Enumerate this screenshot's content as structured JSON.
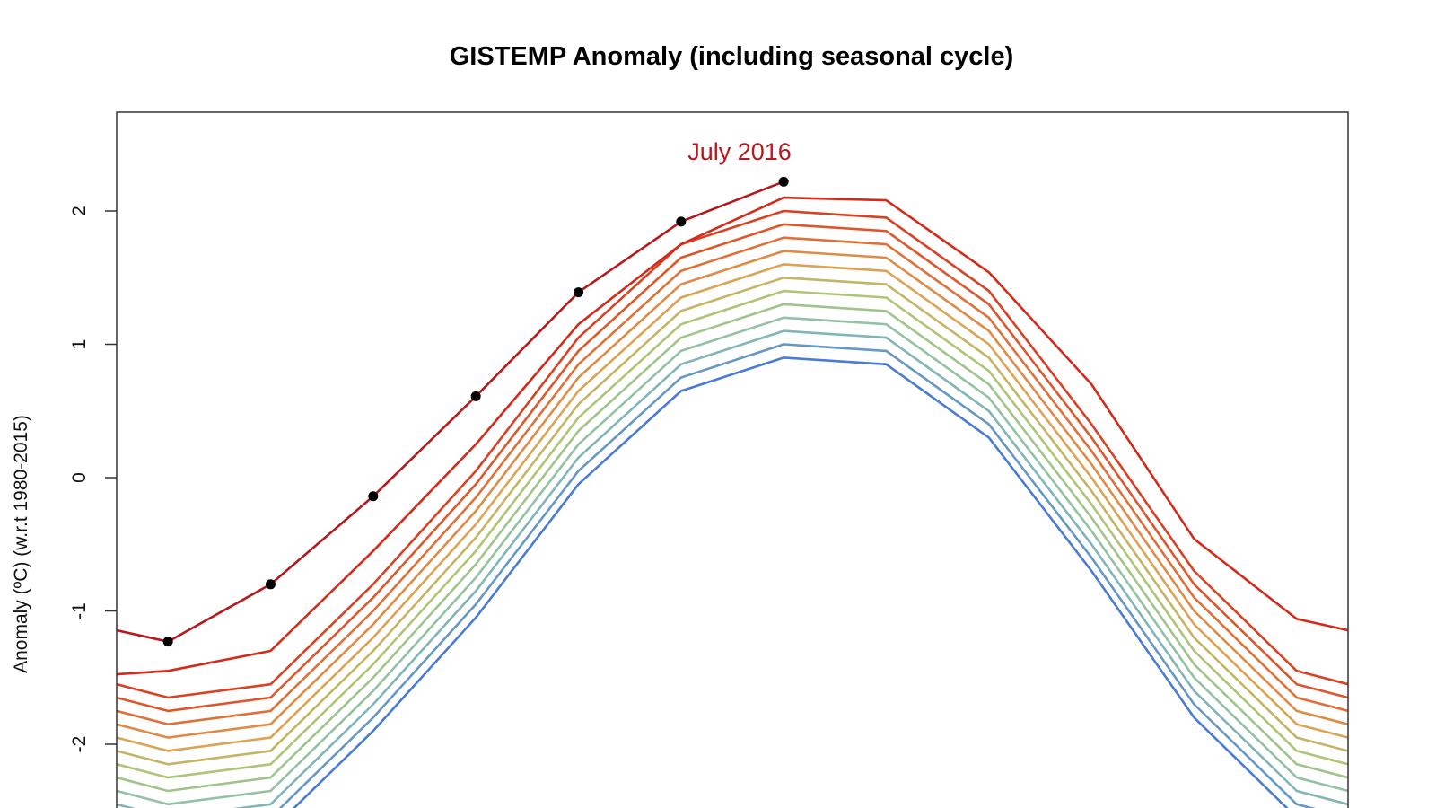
{
  "chart_data": {
    "type": "line",
    "title": "GISTEMP Anomaly (including seasonal cycle)",
    "xlabel": "",
    "ylabel": "Anomaly (ºC) (w.r.t 1980-2015)",
    "x_months": [
      0,
      1,
      2,
      3,
      4,
      5,
      6,
      7,
      8,
      9,
      10,
      11,
      12,
      13
    ],
    "xlim": [
      0.5,
      12.5
    ],
    "ylim": [
      -2.6,
      2.6
    ],
    "y_ticks": [
      -2,
      -1,
      0,
      1,
      2
    ],
    "y_tick_labels": [
      "-2",
      "-1",
      "0",
      "1",
      "2"
    ],
    "grid": false,
    "color_scale": [
      "#4a7bd6",
      "#8cc0b0",
      "#a8c878",
      "#e0a050",
      "#e06030",
      "#d42a1a"
    ],
    "background_series": [
      [
        -2.55,
        -2.75,
        -2.65,
        -1.9,
        -1.05,
        -0.05,
        0.65,
        0.9,
        0.85,
        0.3,
        -0.7,
        -1.8,
        -2.55,
        -2.75
      ],
      [
        -2.45,
        -2.65,
        -2.55,
        -1.8,
        -0.95,
        0.05,
        0.75,
        1.0,
        0.95,
        0.4,
        -0.6,
        -1.7,
        -2.45,
        -2.65
      ],
      [
        -2.35,
        -2.55,
        -2.45,
        -1.7,
        -0.85,
        0.15,
        0.85,
        1.1,
        1.05,
        0.5,
        -0.5,
        -1.6,
        -2.35,
        -2.55
      ],
      [
        -2.25,
        -2.45,
        -2.35,
        -1.6,
        -0.75,
        0.25,
        0.95,
        1.2,
        1.15,
        0.6,
        -0.4,
        -1.5,
        -2.25,
        -2.45
      ],
      [
        -2.15,
        -2.35,
        -2.25,
        -1.5,
        -0.65,
        0.35,
        1.05,
        1.3,
        1.25,
        0.7,
        -0.3,
        -1.4,
        -2.15,
        -2.35
      ],
      [
        -2.05,
        -2.25,
        -2.15,
        -1.4,
        -0.55,
        0.45,
        1.15,
        1.4,
        1.35,
        0.8,
        -0.2,
        -1.3,
        -2.05,
        -2.25
      ],
      [
        -1.95,
        -2.15,
        -2.05,
        -1.3,
        -0.45,
        0.55,
        1.25,
        1.5,
        1.45,
        0.9,
        -0.1,
        -1.2,
        -1.95,
        -2.15
      ],
      [
        -1.85,
        -2.05,
        -1.95,
        -1.2,
        -0.35,
        0.65,
        1.35,
        1.6,
        1.55,
        1.0,
        0.0,
        -1.1,
        -1.85,
        -2.05
      ],
      [
        -1.75,
        -1.95,
        -1.85,
        -1.1,
        -0.25,
        0.75,
        1.45,
        1.7,
        1.65,
        1.1,
        0.1,
        -1.0,
        -1.75,
        -1.95
      ],
      [
        -1.65,
        -1.85,
        -1.75,
        -1.0,
        -0.15,
        0.85,
        1.55,
        1.8,
        1.75,
        1.2,
        0.2,
        -0.9,
        -1.65,
        -1.85
      ],
      [
        -1.55,
        -1.75,
        -1.65,
        -0.9,
        -0.05,
        0.95,
        1.65,
        1.9,
        1.85,
        1.3,
        0.3,
        -0.8,
        -1.55,
        -1.75
      ],
      [
        -1.45,
        -1.65,
        -1.55,
        -0.8,
        0.05,
        1.05,
        1.75,
        2.0,
        1.95,
        1.4,
        0.4,
        -0.7,
        -1.45,
        -1.65
      ],
      [
        -1.5,
        -1.45,
        -1.3,
        -0.55,
        0.25,
        1.15,
        1.75,
        2.1,
        2.08,
        1.54,
        0.7,
        -0.46,
        -1.06,
        -1.23
      ]
    ],
    "highlight_series": {
      "label": "July 2016",
      "color": "#b5191e",
      "marker_color": "#000000",
      "values": [
        -1.06,
        -1.23,
        -0.8,
        -0.14,
        0.61,
        1.39,
        1.92,
        2.22
      ]
    }
  }
}
